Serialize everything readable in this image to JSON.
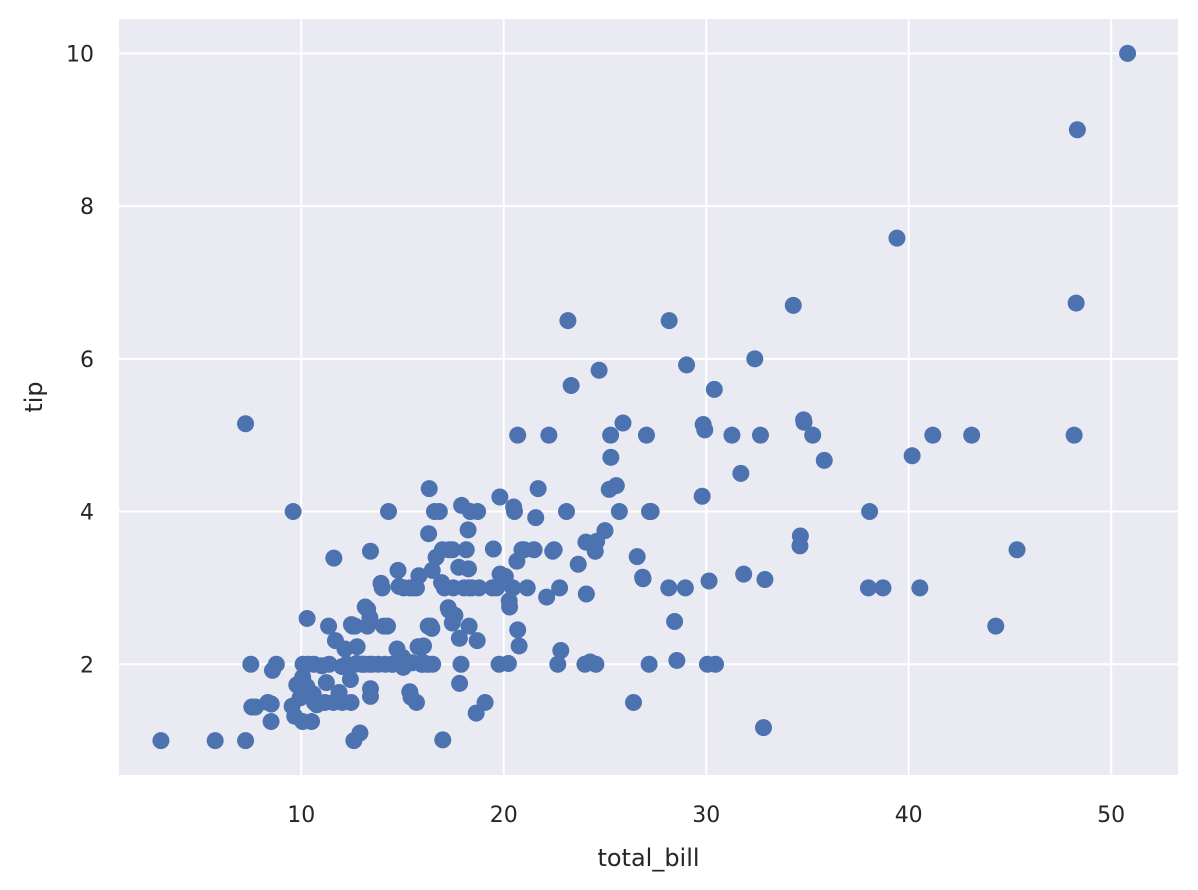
{
  "chart_data": {
    "type": "scatter",
    "title": "",
    "xlabel": "total_bill",
    "ylabel": "tip",
    "xlim": [
      1.0,
      53.3
    ],
    "ylim": [
      0.55,
      10.45
    ],
    "xticks": [
      10,
      20,
      30,
      40,
      50
    ],
    "yticks": [
      2,
      4,
      6,
      8,
      10
    ],
    "grid": true,
    "colors": {
      "background": "#eaeaf2",
      "grid": "#ffffff",
      "point": "#4c72b0",
      "text": "#262626"
    },
    "points": [
      [
        3.07,
        1.0
      ],
      [
        5.75,
        1.0
      ],
      [
        7.25,
        1.0
      ],
      [
        7.25,
        5.15
      ],
      [
        7.51,
        2.0
      ],
      [
        7.56,
        1.44
      ],
      [
        7.74,
        1.44
      ],
      [
        8.35,
        1.5
      ],
      [
        8.51,
        1.25
      ],
      [
        8.52,
        1.48
      ],
      [
        8.58,
        1.92
      ],
      [
        8.77,
        2.0
      ],
      [
        9.55,
        1.45
      ],
      [
        9.6,
        4.0
      ],
      [
        9.68,
        1.32
      ],
      [
        9.78,
        1.73
      ],
      [
        9.94,
        1.56
      ],
      [
        10.07,
        1.83
      ],
      [
        10.07,
        1.25
      ],
      [
        10.09,
        2.0
      ],
      [
        10.27,
        1.71
      ],
      [
        10.29,
        2.6
      ],
      [
        10.33,
        1.67
      ],
      [
        10.34,
        2.0
      ],
      [
        10.51,
        1.25
      ],
      [
        10.59,
        1.61
      ],
      [
        10.63,
        2.0
      ],
      [
        10.65,
        1.5
      ],
      [
        10.77,
        1.47
      ],
      [
        11.02,
        1.98
      ],
      [
        11.17,
        1.5
      ],
      [
        11.24,
        1.76
      ],
      [
        11.35,
        2.5
      ],
      [
        11.38,
        2.0
      ],
      [
        11.59,
        1.5
      ],
      [
        11.61,
        3.39
      ],
      [
        11.69,
        2.31
      ],
      [
        11.87,
        1.63
      ],
      [
        12.02,
        1.97
      ],
      [
        12.03,
        1.5
      ],
      [
        12.16,
        2.2
      ],
      [
        12.26,
        2.0
      ],
      [
        12.43,
        1.8
      ],
      [
        12.46,
        1.5
      ],
      [
        12.48,
        2.52
      ],
      [
        12.54,
        2.5
      ],
      [
        12.6,
        1.0
      ],
      [
        12.66,
        2.5
      ],
      [
        12.69,
        2.0
      ],
      [
        12.74,
        2.01
      ],
      [
        12.76,
        2.23
      ],
      [
        12.9,
        1.1
      ],
      [
        13.0,
        2.0
      ],
      [
        13.03,
        2.0
      ],
      [
        13.13,
        2.0
      ],
      [
        13.16,
        2.75
      ],
      [
        13.27,
        2.5
      ],
      [
        13.28,
        2.72
      ],
      [
        13.37,
        2.0
      ],
      [
        13.39,
        2.61
      ],
      [
        13.42,
        3.48
      ],
      [
        13.42,
        1.58
      ],
      [
        13.42,
        1.68
      ],
      [
        13.51,
        2.0
      ],
      [
        13.81,
        2.0
      ],
      [
        13.94,
        3.06
      ],
      [
        14.0,
        3.0
      ],
      [
        14.07,
        2.5
      ],
      [
        14.15,
        2.0
      ],
      [
        14.26,
        2.5
      ],
      [
        14.31,
        4.0
      ],
      [
        14.48,
        2.0
      ],
      [
        14.52,
        2.0
      ],
      [
        14.73,
        2.2
      ],
      [
        14.78,
        3.23
      ],
      [
        14.83,
        3.02
      ],
      [
        15.01,
        2.09
      ],
      [
        15.04,
        1.96
      ],
      [
        15.06,
        3.0
      ],
      [
        15.36,
        1.64
      ],
      [
        15.38,
        3.0
      ],
      [
        15.42,
        1.57
      ],
      [
        15.48,
        2.02
      ],
      [
        15.53,
        3.0
      ],
      [
        15.69,
        1.5
      ],
      [
        15.69,
        3.0
      ],
      [
        15.77,
        2.23
      ],
      [
        15.81,
        3.16
      ],
      [
        15.95,
        2.0
      ],
      [
        15.98,
        2.03
      ],
      [
        16.0,
        2.0
      ],
      [
        16.04,
        2.24
      ],
      [
        16.21,
        2.0
      ],
      [
        16.27,
        2.5
      ],
      [
        16.29,
        3.71
      ],
      [
        16.31,
        2.0
      ],
      [
        16.32,
        4.3
      ],
      [
        16.4,
        2.5
      ],
      [
        16.45,
        2.47
      ],
      [
        16.47,
        3.23
      ],
      [
        16.49,
        2.0
      ],
      [
        16.58,
        4.0
      ],
      [
        16.66,
        3.4
      ],
      [
        16.82,
        4.0
      ],
      [
        16.93,
        3.07
      ],
      [
        16.97,
        3.5
      ],
      [
        16.99,
        1.01
      ],
      [
        17.07,
        3.0
      ],
      [
        17.26,
        2.74
      ],
      [
        17.29,
        2.71
      ],
      [
        17.31,
        3.5
      ],
      [
        17.46,
        2.54
      ],
      [
        17.47,
        3.5
      ],
      [
        17.51,
        3.0
      ],
      [
        17.59,
        2.64
      ],
      [
        17.78,
        3.27
      ],
      [
        17.81,
        2.34
      ],
      [
        17.82,
        1.75
      ],
      [
        17.89,
        2.0
      ],
      [
        17.92,
        4.08
      ],
      [
        18.04,
        3.0
      ],
      [
        18.15,
        3.5
      ],
      [
        18.24,
        3.76
      ],
      [
        18.26,
        3.25
      ],
      [
        18.29,
        3.0
      ],
      [
        18.29,
        2.5
      ],
      [
        18.35,
        4.0
      ],
      [
        18.43,
        3.0
      ],
      [
        18.64,
        1.36
      ],
      [
        18.69,
        2.31
      ],
      [
        18.71,
        4.0
      ],
      [
        18.78,
        3.0
      ],
      [
        19.08,
        1.5
      ],
      [
        19.44,
        3.0
      ],
      [
        19.49,
        3.51
      ],
      [
        19.65,
        3.0
      ],
      [
        19.77,
        2.0
      ],
      [
        19.81,
        4.19
      ],
      [
        19.82,
        3.18
      ],
      [
        20.08,
        3.15
      ],
      [
        20.23,
        2.01
      ],
      [
        20.27,
        2.83
      ],
      [
        20.29,
        2.75
      ],
      [
        20.45,
        3.0
      ],
      [
        20.49,
        4.06
      ],
      [
        20.53,
        4.0
      ],
      [
        20.65,
        3.35
      ],
      [
        20.69,
        2.45
      ],
      [
        20.69,
        5.0
      ],
      [
        20.76,
        2.24
      ],
      [
        20.9,
        3.5
      ],
      [
        21.01,
        3.5
      ],
      [
        21.16,
        3.0
      ],
      [
        21.5,
        3.5
      ],
      [
        21.58,
        3.92
      ],
      [
        21.7,
        4.3
      ],
      [
        22.12,
        2.88
      ],
      [
        22.23,
        5.0
      ],
      [
        22.42,
        3.48
      ],
      [
        22.49,
        3.5
      ],
      [
        22.67,
        2.0
      ],
      [
        22.76,
        3.0
      ],
      [
        22.82,
        2.18
      ],
      [
        23.1,
        4.0
      ],
      [
        23.17,
        6.5
      ],
      [
        23.33,
        5.65
      ],
      [
        23.68,
        3.31
      ],
      [
        24.01,
        2.0
      ],
      [
        24.06,
        3.6
      ],
      [
        24.08,
        2.92
      ],
      [
        24.27,
        2.03
      ],
      [
        24.52,
        3.48
      ],
      [
        24.55,
        2.0
      ],
      [
        24.59,
        3.61
      ],
      [
        24.71,
        5.85
      ],
      [
        25.0,
        3.75
      ],
      [
        25.21,
        4.29
      ],
      [
        25.28,
        5.0
      ],
      [
        25.29,
        4.71
      ],
      [
        25.56,
        4.34
      ],
      [
        25.71,
        4.0
      ],
      [
        25.89,
        5.16
      ],
      [
        26.41,
        1.5
      ],
      [
        26.59,
        3.41
      ],
      [
        26.86,
        3.14
      ],
      [
        26.88,
        3.12
      ],
      [
        27.05,
        5.0
      ],
      [
        27.18,
        2.0
      ],
      [
        27.2,
        4.0
      ],
      [
        27.28,
        4.0
      ],
      [
        28.15,
        3.0
      ],
      [
        28.17,
        6.5
      ],
      [
        28.44,
        2.56
      ],
      [
        28.55,
        2.05
      ],
      [
        28.97,
        3.0
      ],
      [
        29.03,
        5.92
      ],
      [
        29.8,
        4.2
      ],
      [
        29.85,
        5.14
      ],
      [
        29.93,
        5.07
      ],
      [
        30.06,
        2.0
      ],
      [
        30.14,
        3.09
      ],
      [
        30.4,
        5.6
      ],
      [
        30.46,
        2.0
      ],
      [
        31.27,
        5.0
      ],
      [
        31.71,
        4.5
      ],
      [
        31.85,
        3.18
      ],
      [
        32.4,
        6.0
      ],
      [
        32.68,
        5.0
      ],
      [
        32.83,
        1.17
      ],
      [
        32.9,
        3.11
      ],
      [
        34.3,
        6.7
      ],
      [
        34.63,
        3.55
      ],
      [
        34.65,
        3.68
      ],
      [
        34.81,
        5.2
      ],
      [
        34.83,
        5.17
      ],
      [
        35.26,
        5.0
      ],
      [
        35.83,
        4.67
      ],
      [
        38.01,
        3.0
      ],
      [
        38.07,
        4.0
      ],
      [
        38.73,
        3.0
      ],
      [
        39.42,
        7.58
      ],
      [
        40.17,
        4.73
      ],
      [
        40.55,
        3.0
      ],
      [
        41.19,
        5.0
      ],
      [
        43.11,
        5.0
      ],
      [
        44.3,
        2.5
      ],
      [
        45.35,
        3.5
      ],
      [
        48.17,
        5.0
      ],
      [
        48.27,
        6.73
      ],
      [
        48.33,
        9.0
      ],
      [
        50.81,
        10.0
      ]
    ]
  }
}
